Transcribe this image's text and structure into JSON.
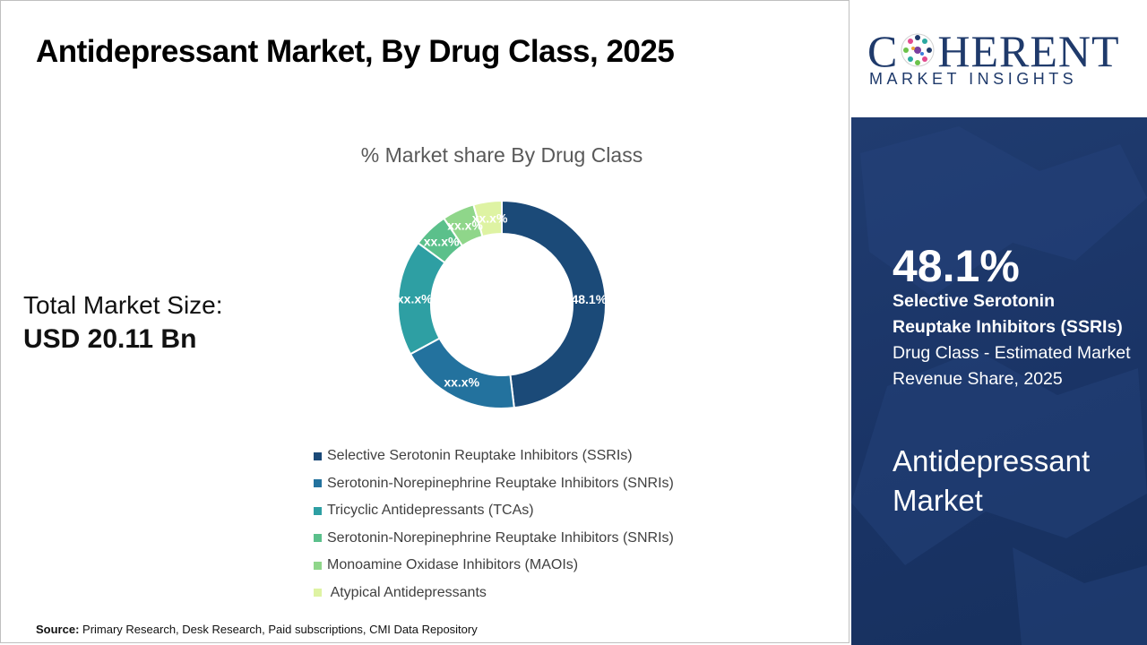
{
  "title": "Antidepressant Market, By Drug Class, 2025",
  "total_market": {
    "label": "Total Market Size:",
    "value": "USD 20.11 Bn"
  },
  "source": {
    "label": "Source:",
    "text": " Primary Research, Desk Research, Paid subscriptions, CMI Data Repository"
  },
  "brand": {
    "name_left": "C",
    "name_right": "HERENT",
    "subtitle": "MARKET INSIGHTS"
  },
  "highlight": {
    "value": "48.1%",
    "desc_bold": "Selective Serotonin Reuptake Inhibitors (SSRIs)",
    "desc_rest": " Drug Class - Estimated Market Revenue Share, 2025"
  },
  "market_name": "Antidepressant Market",
  "chart_data": {
    "type": "pie",
    "donut": true,
    "title": "% Market share By Drug Class",
    "legend_position": "bottom",
    "slices": [
      {
        "label": "Selective Serotonin Reuptake Inhibitors (SSRIs)",
        "value": 48.1,
        "data_label": "48.1%",
        "color": "#1b4a78"
      },
      {
        "label": "Serotonin-Norepinephrine Reuptake Inhibitors (SNRIs)",
        "value": 19.0,
        "data_label": "xx.x%",
        "color": "#23729e"
      },
      {
        "label": "Tricyclic Antidepressants (TCAs)",
        "value": 18.0,
        "data_label": "xx.x%",
        "color": "#2e9fa3"
      },
      {
        "label": "Serotonin-Norepinephrine Reuptake Inhibitors (SNRIs)",
        "value": 5.5,
        "data_label": "xx.x%",
        "color": "#5bc08b"
      },
      {
        "label": "Monoamine Oxidase Inhibitors (MAOIs)",
        "value": 5.0,
        "data_label": "xx.x%",
        "color": "#8fd68a"
      },
      {
        "label": " Atypical Antidepressants",
        "value": 4.4,
        "data_label": "xx.x%",
        "color": "#def3a3"
      }
    ]
  }
}
